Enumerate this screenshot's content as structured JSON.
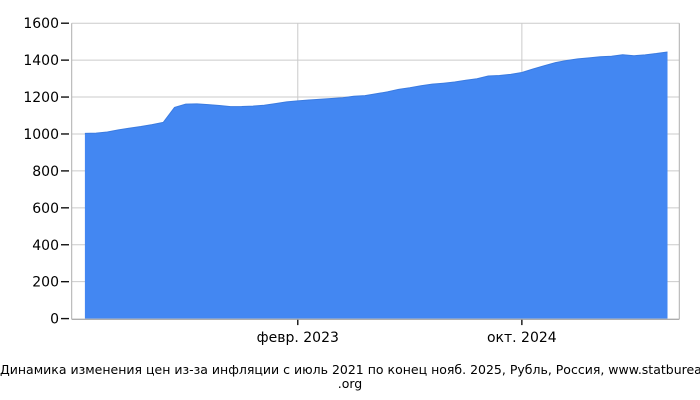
{
  "chart_data": {
    "type": "area",
    "title": "",
    "xlabel": "",
    "ylabel": "",
    "ylim": [
      0,
      1600
    ],
    "grid": true,
    "legend": "none",
    "y_ticks": [
      0,
      200,
      400,
      600,
      800,
      1000,
      1200,
      1400,
      1600
    ],
    "x_axis_ticks": [
      {
        "label": "февр. 2023",
        "index": 19
      },
      {
        "label": "окт. 2024",
        "index": 39
      }
    ],
    "x": [
      "2021-07",
      "2021-08",
      "2021-09",
      "2021-10",
      "2021-11",
      "2021-12",
      "2022-01",
      "2022-02",
      "2022-03",
      "2022-04",
      "2022-05",
      "2022-06",
      "2022-07",
      "2022-08",
      "2022-09",
      "2022-10",
      "2022-11",
      "2022-12",
      "2023-01",
      "2023-02",
      "2023-03",
      "2023-04",
      "2023-05",
      "2023-06",
      "2023-07",
      "2023-08",
      "2023-09",
      "2023-10",
      "2023-11",
      "2023-12",
      "2024-01",
      "2024-02",
      "2024-03",
      "2024-04",
      "2024-05",
      "2024-06",
      "2024-07",
      "2024-08",
      "2024-09",
      "2024-10",
      "2024-11",
      "2024-12",
      "2025-01",
      "2025-02",
      "2025-03",
      "2025-04",
      "2025-05",
      "2025-06",
      "2025-07",
      "2025-08",
      "2025-09",
      "2025-10",
      "2025-11"
    ],
    "values": [
      1003.1,
      1004.8,
      1010.8,
      1022.0,
      1031.8,
      1040.3,
      1050.6,
      1062.9,
      1143.8,
      1161.6,
      1163.0,
      1158.9,
      1154.4,
      1148.4,
      1149.0,
      1151.1,
      1155.3,
      1164.3,
      1174.1,
      1179.5,
      1183.9,
      1188.4,
      1192.0,
      1196.5,
      1204.0,
      1207.4,
      1217.9,
      1228.0,
      1241.6,
      1250.7,
      1261.4,
      1270.0,
      1275.0,
      1281.3,
      1290.8,
      1299.1,
      1313.9,
      1316.5,
      1322.8,
      1332.8,
      1351.8,
      1369.7,
      1386.5,
      1397.7,
      1406.8,
      1412.4,
      1418.5,
      1421.3,
      1429.4,
      1423.7,
      1428.6,
      1435.7,
      1444.3
    ],
    "colors": {
      "area_fill": "#4387F2",
      "area_edge": "#3B7BE0",
      "gridline": "#CBCBCB",
      "axis_border": "#ADADAD",
      "tick_mark": "#111111",
      "text": "#000000"
    }
  },
  "caption": {
    "line1": "Динамика изменения цен из-за инфляции с июль 2021 по конец нояб. 2025, Рубль, Россия, www.statbureau",
    "line2": ".org"
  }
}
